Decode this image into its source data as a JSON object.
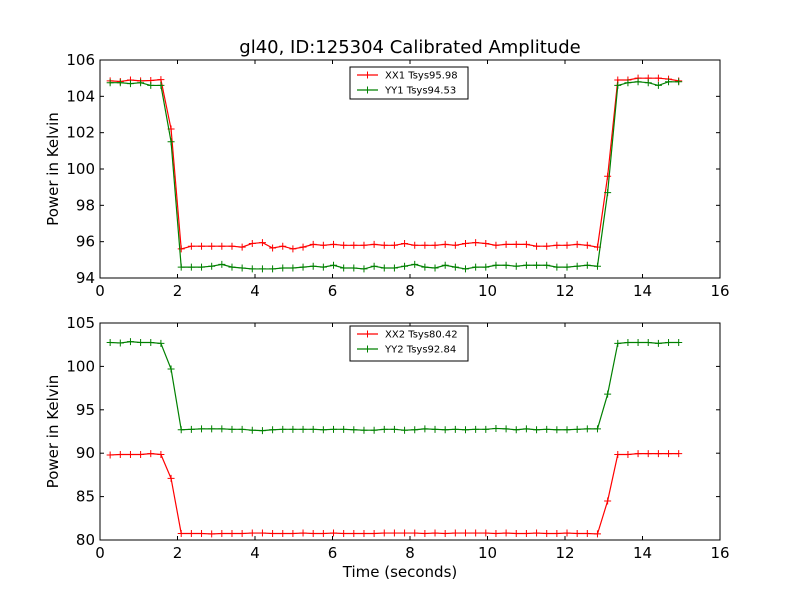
{
  "chart_data": [
    {
      "type": "line",
      "title": "gl40, ID:125304 Calibrated Amplitude",
      "xlabel": "",
      "ylabel": "Power in Kelvin",
      "xlim": [
        0,
        16
      ],
      "ylim": [
        94,
        106
      ],
      "xticks": [
        0,
        2,
        4,
        6,
        8,
        10,
        12,
        14,
        16
      ],
      "yticks": [
        94,
        96,
        98,
        100,
        102,
        104,
        106
      ],
      "grid": false,
      "legend_position": "top-center",
      "x": [
        0.262,
        0.524,
        0.786,
        1.048,
        1.31,
        1.572,
        1.834,
        2.096,
        2.358,
        2.62,
        2.882,
        3.144,
        3.406,
        3.668,
        3.93,
        4.192,
        4.454,
        4.716,
        4.978,
        5.24,
        5.502,
        5.764,
        6.026,
        6.288,
        6.55,
        6.812,
        7.074,
        7.336,
        7.598,
        7.86,
        8.122,
        8.384,
        8.646,
        8.908,
        9.17,
        9.432,
        9.694,
        9.956,
        10.218,
        10.48,
        10.742,
        11.004,
        11.266,
        11.528,
        11.79,
        12.052,
        12.314,
        12.576,
        12.838,
        13.1,
        13.362,
        13.624,
        13.886,
        14.148,
        14.41,
        14.672,
        14.934
      ],
      "series": [
        {
          "name": "XX1 Tsys95.98",
          "color": "#ff0000",
          "values": [
            104.85,
            104.82,
            104.9,
            104.85,
            104.87,
            104.92,
            102.2,
            95.6,
            95.75,
            95.75,
            95.75,
            95.75,
            95.75,
            95.7,
            95.9,
            95.95,
            95.65,
            95.75,
            95.6,
            95.7,
            95.85,
            95.8,
            95.85,
            95.8,
            95.8,
            95.8,
            95.85,
            95.8,
            95.8,
            95.9,
            95.8,
            95.8,
            95.8,
            95.85,
            95.8,
            95.9,
            95.95,
            95.9,
            95.8,
            95.85,
            95.85,
            95.85,
            95.75,
            95.75,
            95.8,
            95.8,
            95.85,
            95.8,
            95.7,
            99.6,
            104.9,
            104.9,
            105.0,
            105.0,
            105.0,
            104.95,
            104.85
          ]
        },
        {
          "name": "YY1 Tsys94.53",
          "color": "#008000",
          "values": [
            104.75,
            104.75,
            104.7,
            104.75,
            104.6,
            104.6,
            101.5,
            94.6,
            94.6,
            94.6,
            94.65,
            94.75,
            94.6,
            94.55,
            94.5,
            94.5,
            94.5,
            94.55,
            94.55,
            94.6,
            94.65,
            94.6,
            94.7,
            94.55,
            94.55,
            94.5,
            94.65,
            94.55,
            94.55,
            94.65,
            94.75,
            94.6,
            94.55,
            94.7,
            94.6,
            94.5,
            94.6,
            94.6,
            94.7,
            94.7,
            94.65,
            94.7,
            94.7,
            94.7,
            94.6,
            94.6,
            94.65,
            94.7,
            94.65,
            98.7,
            104.6,
            104.75,
            104.8,
            104.75,
            104.6,
            104.8,
            104.8
          ]
        }
      ]
    },
    {
      "type": "line",
      "title": "",
      "xlabel": "Time (seconds)",
      "ylabel": "Power in Kelvin",
      "xlim": [
        0,
        16
      ],
      "ylim": [
        80,
        105
      ],
      "xticks": [
        0,
        2,
        4,
        6,
        8,
        10,
        12,
        14,
        16
      ],
      "yticks": [
        80,
        85,
        90,
        95,
        100,
        105
      ],
      "grid": false,
      "legend_position": "top-center",
      "x": [
        0.262,
        0.524,
        0.786,
        1.048,
        1.31,
        1.572,
        1.834,
        2.096,
        2.358,
        2.62,
        2.882,
        3.144,
        3.406,
        3.668,
        3.93,
        4.192,
        4.454,
        4.716,
        4.978,
        5.24,
        5.502,
        5.764,
        6.026,
        6.288,
        6.55,
        6.812,
        7.074,
        7.336,
        7.598,
        7.86,
        8.122,
        8.384,
        8.646,
        8.908,
        9.17,
        9.432,
        9.694,
        9.956,
        10.218,
        10.48,
        10.742,
        11.004,
        11.266,
        11.528,
        11.79,
        12.052,
        12.314,
        12.576,
        12.838,
        13.1,
        13.362,
        13.624,
        13.886,
        14.148,
        14.41,
        14.672,
        14.934
      ],
      "series": [
        {
          "name": "XX2 Tsys80.42",
          "color": "#ff0000",
          "values": [
            89.8,
            89.85,
            89.85,
            89.85,
            89.95,
            89.85,
            87.1,
            80.75,
            80.75,
            80.75,
            80.7,
            80.75,
            80.75,
            80.75,
            80.8,
            80.8,
            80.75,
            80.75,
            80.75,
            80.8,
            80.75,
            80.75,
            80.8,
            80.75,
            80.75,
            80.75,
            80.75,
            80.8,
            80.8,
            80.8,
            80.8,
            80.75,
            80.8,
            80.75,
            80.8,
            80.8,
            80.8,
            80.8,
            80.75,
            80.8,
            80.75,
            80.75,
            80.8,
            80.75,
            80.75,
            80.8,
            80.75,
            80.75,
            80.7,
            84.5,
            89.85,
            89.85,
            89.95,
            89.95,
            89.95,
            89.95,
            89.95
          ]
        },
        {
          "name": "YY2 Tsys92.84",
          "color": "#008000",
          "values": [
            102.75,
            102.7,
            102.85,
            102.75,
            102.75,
            102.65,
            99.7,
            92.7,
            92.75,
            92.8,
            92.8,
            92.8,
            92.75,
            92.75,
            92.65,
            92.6,
            92.7,
            92.75,
            92.75,
            92.75,
            92.75,
            92.7,
            92.75,
            92.75,
            92.7,
            92.65,
            92.65,
            92.75,
            92.75,
            92.65,
            92.7,
            92.8,
            92.75,
            92.7,
            92.75,
            92.7,
            92.75,
            92.75,
            92.85,
            92.8,
            92.7,
            92.8,
            92.7,
            92.75,
            92.7,
            92.7,
            92.75,
            92.8,
            92.8,
            96.8,
            102.65,
            102.75,
            102.75,
            102.75,
            102.65,
            102.75,
            102.75
          ]
        }
      ]
    }
  ]
}
